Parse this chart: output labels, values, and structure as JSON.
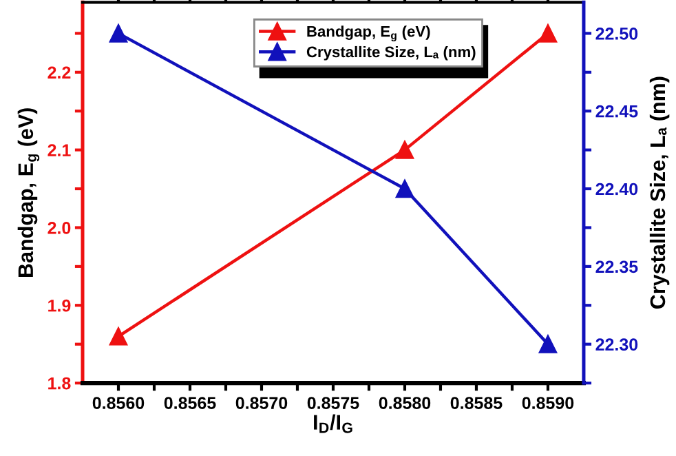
{
  "chart_data": {
    "type": "line",
    "xlabel": "I$_{D}$/I$_{G}$",
    "ylabel": "Bandgap, E$_{g}$ (eV)",
    "y2label": "Crystallite Size, Lₐ (nm)",
    "series": [
      {
        "name": "Bandgap, E$_{g}$ (eV)",
        "color": "#ee1111",
        "x": [
          0.856,
          0.858,
          0.859
        ],
        "values": [
          1.86,
          2.1,
          2.25
        ]
      },
      {
        "name": "Crystallite Size, Lₐ (nm)",
        "color": "#1111bb",
        "axis": "y2",
        "x": [
          0.856,
          0.858,
          0.859
        ],
        "values": [
          22.5,
          22.4,
          22.3
        ]
      }
    ],
    "xlim": [
      0.85575,
      0.85925
    ],
    "xticks": [
      {
        "value": 0.856,
        "label": "0.8560"
      },
      {
        "value": 0.85625,
        "label": null
      },
      {
        "value": 0.8565,
        "label": "0.8565"
      },
      {
        "value": 0.85675,
        "label": null
      },
      {
        "value": 0.857,
        "label": "0.8570"
      },
      {
        "value": 0.85725,
        "label": null
      },
      {
        "value": 0.8575,
        "label": "0.8575"
      },
      {
        "value": 0.85775,
        "label": null
      },
      {
        "value": 0.858,
        "label": "0.8580"
      },
      {
        "value": 0.85825,
        "label": null
      },
      {
        "value": 0.8585,
        "label": "0.8585"
      },
      {
        "value": 0.85875,
        "label": null
      },
      {
        "value": 0.859,
        "label": "0.8590"
      }
    ],
    "ylim": [
      1.8,
      2.29
    ],
    "yticks": [
      1.8,
      {
        "value": 1.85,
        "label": null
      },
      1.9,
      {
        "value": 1.95,
        "label": null
      },
      {
        "value": 2.0,
        "label": "2.0"
      },
      {
        "value": 2.05,
        "label": null
      },
      2.1,
      {
        "value": 2.15,
        "label": null
      },
      2.2,
      {
        "value": 2.25,
        "label": null
      }
    ],
    "y2lim": [
      22.275,
      22.52
    ],
    "y2ticks": [
      {
        "value": 22.275,
        "label": null
      },
      {
        "value": 22.3,
        "label": "22.30"
      },
      {
        "value": 22.325,
        "label": null
      },
      22.35,
      {
        "value": 22.375,
        "label": null
      },
      {
        "value": 22.4,
        "label": "22.40"
      },
      {
        "value": 22.425,
        "label": null
      },
      22.45,
      {
        "value": 22.475,
        "label": null
      },
      {
        "value": 22.5,
        "label": "22.50"
      }
    ],
    "legend": "top",
    "marker": "triangle",
    "line_style": "solid"
  }
}
